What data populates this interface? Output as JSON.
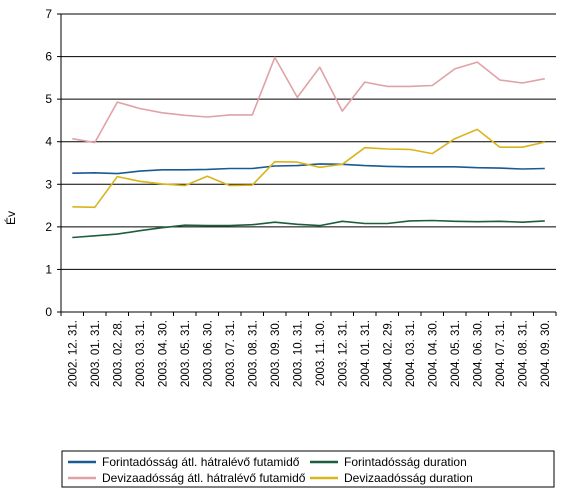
{
  "chart_data": {
    "type": "line",
    "title": "",
    "xlabel": "",
    "ylabel": "Év",
    "ylim": [
      0,
      7
    ],
    "yticks": [
      "0",
      "1",
      "2",
      "3",
      "4",
      "5",
      "6",
      "7"
    ],
    "grid": true,
    "legend_position": "bottom",
    "categories": [
      "2002. 12. 31.",
      "2003. 01. 31.",
      "2003. 02. 28.",
      "2003. 03. 31.",
      "2003. 04. 30.",
      "2003. 05. 31.",
      "2003. 06. 30.",
      "2003. 07. 31.",
      "2003. 08. 31.",
      "2003. 09. 30.",
      "2003. 10. 31.",
      "2003. 11. 30.",
      "2003. 12. 31.",
      "2004. 01. 31.",
      "2004. 02. 29.",
      "2004. 03. 31.",
      "2004. 04. 30.",
      "2004. 05. 31.",
      "2004. 06. 30.",
      "2004. 07. 31.",
      "2004. 08. 31.",
      "2004. 09. 30."
    ],
    "series": [
      {
        "name": "Forintadósság átl. hátralévő futamidő",
        "color": "#1a5a94",
        "values": [
          3.26,
          3.27,
          3.25,
          3.31,
          3.34,
          3.34,
          3.35,
          3.37,
          3.37,
          3.43,
          3.44,
          3.48,
          3.47,
          3.44,
          3.42,
          3.41,
          3.41,
          3.41,
          3.39,
          3.38,
          3.36,
          3.37
        ]
      },
      {
        "name": "Forintadósság duration",
        "color": "#1e5e3c",
        "values": [
          1.75,
          1.79,
          1.83,
          1.91,
          1.98,
          2.04,
          2.03,
          2.03,
          2.05,
          2.11,
          2.06,
          2.03,
          2.13,
          2.08,
          2.08,
          2.14,
          2.15,
          2.13,
          2.12,
          2.13,
          2.11,
          2.14
        ]
      },
      {
        "name": "Devizaadósság átl. hátralévő futamidő",
        "color": "#e0a2a6",
        "values": [
          4.07,
          3.98,
          4.93,
          4.78,
          4.68,
          4.62,
          4.58,
          4.63,
          4.63,
          5.98,
          5.04,
          5.75,
          4.72,
          5.4,
          5.3,
          5.3,
          5.32,
          5.71,
          5.87,
          5.45,
          5.38,
          5.48
        ]
      },
      {
        "name": "Devizaadósság duration",
        "color": "#d9b51c",
        "values": [
          2.47,
          2.46,
          3.18,
          3.07,
          3.01,
          2.97,
          3.19,
          2.97,
          2.98,
          3.53,
          3.52,
          3.4,
          3.47,
          3.86,
          3.83,
          3.82,
          3.72,
          4.07,
          4.29,
          3.87,
          3.87,
          3.99
        ]
      }
    ]
  }
}
